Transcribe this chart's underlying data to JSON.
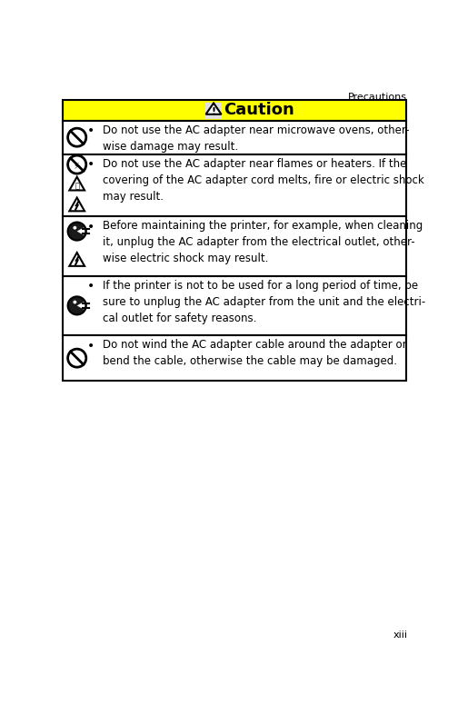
{
  "page_title": "Precautions",
  "page_number": "xiii",
  "caution_title": "Caution",
  "bg_color": "#ffffff",
  "header_bg": "#ffff00",
  "border_color": "#000000",
  "text_color": "#000000",
  "figsize": [
    5.04,
    7.98
  ],
  "dpi": 100,
  "row_texts": [
    "Do not use the AC adapter near microwave ovens, other-\nwise damage may result.",
    "Do not use the AC adapter near flames or heaters. If the\ncovering of the AC adapter cord melts, fire or electric shock\nmay result.",
    "Before maintaining the printer, for example, when cleaning\nit, unplug the AC adapter from the electrical outlet, other-\nwise electric shock may result.",
    "If the printer is not to be used for a long period of time, be\nsure to unplug the AC adapter from the unit and the electri-\ncal outlet for safety reasons.",
    "Do not wind the AC adapter cable around the adapter or\nbend the cable, otherwise the cable may be damaged."
  ]
}
